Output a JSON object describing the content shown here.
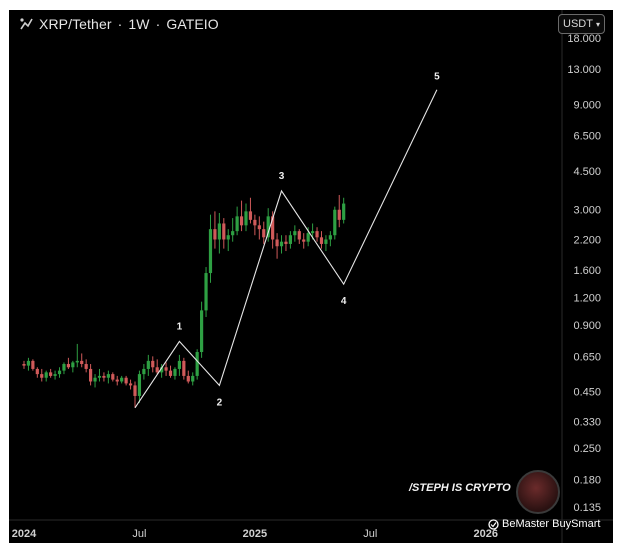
{
  "header": {
    "pair": "XRP/Tether",
    "interval": "1W",
    "exchange": "GATEIO",
    "separator": "·",
    "currency_button": "USDT"
  },
  "watermark": "/STEPH IS CRYPTO",
  "credit": "BeMaster BuySmart",
  "colors": {
    "background": "#000000",
    "up": "#2ea043",
    "down": "#d05a5a",
    "axis_text": "#d0d0d0",
    "wave_line": "#e6e6e6"
  },
  "chart_data": {
    "type": "candlestick",
    "y_scale": "log",
    "ylim": [
      0.12,
      22
    ],
    "y_ticks": [
      "18.000",
      "13.000",
      "9.000",
      "6.500",
      "4.500",
      "3.000",
      "2.200",
      "1.600",
      "1.200",
      "0.900",
      "0.650",
      "0.450",
      "0.330",
      "0.250",
      "0.180",
      "0.135"
    ],
    "x_ticks": [
      {
        "label": "2024",
        "bold": true,
        "week": 0
      },
      {
        "label": "Jul",
        "bold": false,
        "week": 26
      },
      {
        "label": "2025",
        "bold": true,
        "week": 52
      },
      {
        "label": "Jul",
        "bold": false,
        "week": 78
      },
      {
        "label": "2026",
        "bold": true,
        "week": 104
      }
    ],
    "candles": [
      [
        0.6,
        0.62,
        0.57,
        0.59
      ],
      [
        0.59,
        0.64,
        0.56,
        0.62
      ],
      [
        0.62,
        0.63,
        0.56,
        0.57
      ],
      [
        0.57,
        0.58,
        0.52,
        0.54
      ],
      [
        0.54,
        0.57,
        0.5,
        0.52
      ],
      [
        0.52,
        0.56,
        0.5,
        0.55
      ],
      [
        0.55,
        0.57,
        0.52,
        0.53
      ],
      [
        0.53,
        0.56,
        0.51,
        0.54
      ],
      [
        0.54,
        0.58,
        0.52,
        0.56
      ],
      [
        0.56,
        0.61,
        0.54,
        0.6
      ],
      [
        0.6,
        0.64,
        0.57,
        0.58
      ],
      [
        0.58,
        0.62,
        0.55,
        0.61
      ],
      [
        0.61,
        0.74,
        0.58,
        0.62
      ],
      [
        0.62,
        0.67,
        0.58,
        0.6
      ],
      [
        0.6,
        0.63,
        0.55,
        0.57
      ],
      [
        0.57,
        0.6,
        0.48,
        0.5
      ],
      [
        0.5,
        0.54,
        0.47,
        0.52
      ],
      [
        0.52,
        0.57,
        0.5,
        0.53
      ],
      [
        0.53,
        0.55,
        0.5,
        0.52
      ],
      [
        0.52,
        0.56,
        0.49,
        0.54
      ],
      [
        0.54,
        0.55,
        0.5,
        0.51
      ],
      [
        0.51,
        0.53,
        0.48,
        0.5
      ],
      [
        0.5,
        0.53,
        0.49,
        0.52
      ],
      [
        0.52,
        0.53,
        0.48,
        0.49
      ],
      [
        0.49,
        0.51,
        0.46,
        0.48
      ],
      [
        0.48,
        0.5,
        0.38,
        0.43
      ],
      [
        0.43,
        0.56,
        0.4,
        0.54
      ],
      [
        0.54,
        0.6,
        0.51,
        0.57
      ],
      [
        0.57,
        0.66,
        0.53,
        0.62
      ],
      [
        0.62,
        0.65,
        0.55,
        0.58
      ],
      [
        0.58,
        0.63,
        0.54,
        0.55
      ],
      [
        0.55,
        0.6,
        0.52,
        0.58
      ],
      [
        0.58,
        0.61,
        0.53,
        0.56
      ],
      [
        0.56,
        0.59,
        0.52,
        0.53
      ],
      [
        0.53,
        0.58,
        0.51,
        0.57
      ],
      [
        0.57,
        0.66,
        0.53,
        0.62
      ],
      [
        0.62,
        0.64,
        0.51,
        0.53
      ],
      [
        0.53,
        0.56,
        0.49,
        0.5
      ],
      [
        0.5,
        0.55,
        0.48,
        0.53
      ],
      [
        0.53,
        0.7,
        0.51,
        0.68
      ],
      [
        0.68,
        1.15,
        0.64,
        1.05
      ],
      [
        1.05,
        1.65,
        0.98,
        1.55
      ],
      [
        1.55,
        2.85,
        1.4,
        2.45
      ],
      [
        2.45,
        2.95,
        2.0,
        2.2
      ],
      [
        2.2,
        2.9,
        1.9,
        2.6
      ],
      [
        2.6,
        2.75,
        2.0,
        2.2
      ],
      [
        2.2,
        2.45,
        1.95,
        2.3
      ],
      [
        2.3,
        2.75,
        2.15,
        2.4
      ],
      [
        2.4,
        3.1,
        2.3,
        2.8
      ],
      [
        2.8,
        3.3,
        2.4,
        2.55
      ],
      [
        2.55,
        3.2,
        2.4,
        2.95
      ],
      [
        2.95,
        3.4,
        2.6,
        2.7
      ],
      [
        2.7,
        2.85,
        2.3,
        2.55
      ],
      [
        2.55,
        2.8,
        2.2,
        2.45
      ],
      [
        2.45,
        2.65,
        2.1,
        2.25
      ],
      [
        2.25,
        3.05,
        2.15,
        2.8
      ],
      [
        2.8,
        2.95,
        2.0,
        2.2
      ],
      [
        2.2,
        2.35,
        1.8,
        2.05
      ],
      [
        2.05,
        2.3,
        1.9,
        2.15
      ],
      [
        2.15,
        2.3,
        1.95,
        2.1
      ],
      [
        2.1,
        2.4,
        2.0,
        2.3
      ],
      [
        2.3,
        2.55,
        2.15,
        2.4
      ],
      [
        2.4,
        2.45,
        2.1,
        2.2
      ],
      [
        2.2,
        2.35,
        2.0,
        2.15
      ],
      [
        2.15,
        2.5,
        2.05,
        2.35
      ],
      [
        2.35,
        2.6,
        2.2,
        2.4
      ],
      [
        2.4,
        2.5,
        2.15,
        2.25
      ],
      [
        2.25,
        2.4,
        2.0,
        2.1
      ],
      [
        2.1,
        2.3,
        1.95,
        2.2
      ],
      [
        2.2,
        2.4,
        2.05,
        2.3
      ],
      [
        2.3,
        3.1,
        2.2,
        3.0
      ],
      [
        3.0,
        3.5,
        2.5,
        2.7
      ],
      [
        2.7,
        3.4,
        2.6,
        3.2
      ]
    ],
    "wave_labels": [
      "1",
      "2",
      "3",
      "4",
      "5"
    ],
    "wave_points": [
      {
        "week": 25,
        "price": 0.38
      },
      {
        "week": 35,
        "price": 0.76
      },
      {
        "week": 44,
        "price": 0.48
      },
      {
        "week": 58,
        "price": 3.65
      },
      {
        "week": 72,
        "price": 1.38
      },
      {
        "week": 93,
        "price": 10.5
      }
    ]
  }
}
